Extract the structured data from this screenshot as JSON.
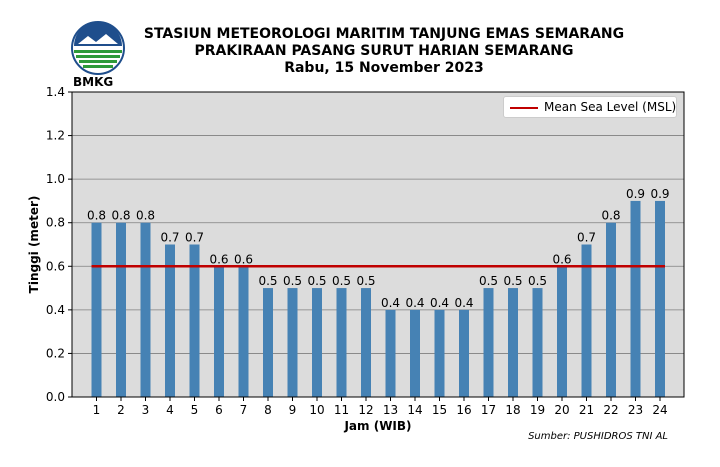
{
  "header": {
    "line1": "STASIUN METEOROLOGI MARITIM TANJUNG EMAS SEMARANG",
    "line2": "PRAKIRAAN PASANG SURUT HARIAN SEMARANG",
    "line3": "Rabu, 15 November 2023"
  },
  "logo": {
    "text": "BMKG"
  },
  "source": "Sumber: PUSHIDROS TNI AL",
  "colors": {
    "bar": "#4682b4",
    "msl_line": "#c00000",
    "plot_bg": "#dcdcdc",
    "grid": "#7f7f7f"
  },
  "chart_data": {
    "type": "bar",
    "title": "",
    "xlabel": "Jam (WIB)",
    "ylabel": "Tinggi (meter)",
    "ylim": [
      0,
      1.4
    ],
    "yticks": [
      "0.0",
      "0.2",
      "0.4",
      "0.6",
      "0.8",
      "1.0",
      "1.2",
      "1.4"
    ],
    "categories": [
      "1",
      "2",
      "3",
      "4",
      "5",
      "6",
      "7",
      "8",
      "9",
      "10",
      "11",
      "12",
      "13",
      "14",
      "15",
      "16",
      "17",
      "18",
      "19",
      "20",
      "21",
      "22",
      "23",
      "24"
    ],
    "values": [
      0.8,
      0.8,
      0.8,
      0.7,
      0.7,
      0.6,
      0.6,
      0.5,
      0.5,
      0.5,
      0.5,
      0.5,
      0.4,
      0.4,
      0.4,
      0.4,
      0.5,
      0.5,
      0.5,
      0.6,
      0.7,
      0.8,
      0.9,
      0.9
    ],
    "data_labels": [
      "0.8",
      "0.8",
      "0.8",
      "0.7",
      "0.7",
      "0.6",
      "0.6",
      "0.5",
      "0.5",
      "0.5",
      "0.5",
      "0.5",
      "0.4",
      "0.4",
      "0.4",
      "0.4",
      "0.5",
      "0.5",
      "0.5",
      "0.6",
      "0.7",
      "0.8",
      "0.9",
      "0.9"
    ],
    "reference_line": {
      "name": "Mean Sea Level (MSL)",
      "value": 0.6
    },
    "grid": true,
    "legend": "top-right"
  }
}
